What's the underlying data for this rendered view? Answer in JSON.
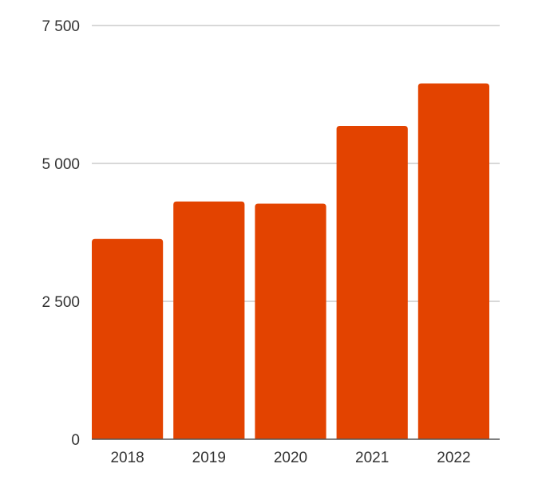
{
  "chart_data": {
    "type": "bar",
    "title": "",
    "xlabel": "",
    "ylabel": "",
    "categories": [
      "2018",
      "2019",
      "2020",
      "2021",
      "2022"
    ],
    "values": [
      3630,
      4310,
      4270,
      5680,
      6450
    ],
    "ylim": [
      0,
      7500
    ],
    "yticks": [
      0,
      2500,
      5000,
      7500
    ],
    "ytick_labels": [
      "0",
      "2 500",
      "5 000",
      "7 500"
    ],
    "grid": true,
    "legend": "none",
    "bar_color": "#e34300",
    "grid_color": "#cccccc",
    "axis_color": "#555555",
    "text_color": "#333333"
  }
}
